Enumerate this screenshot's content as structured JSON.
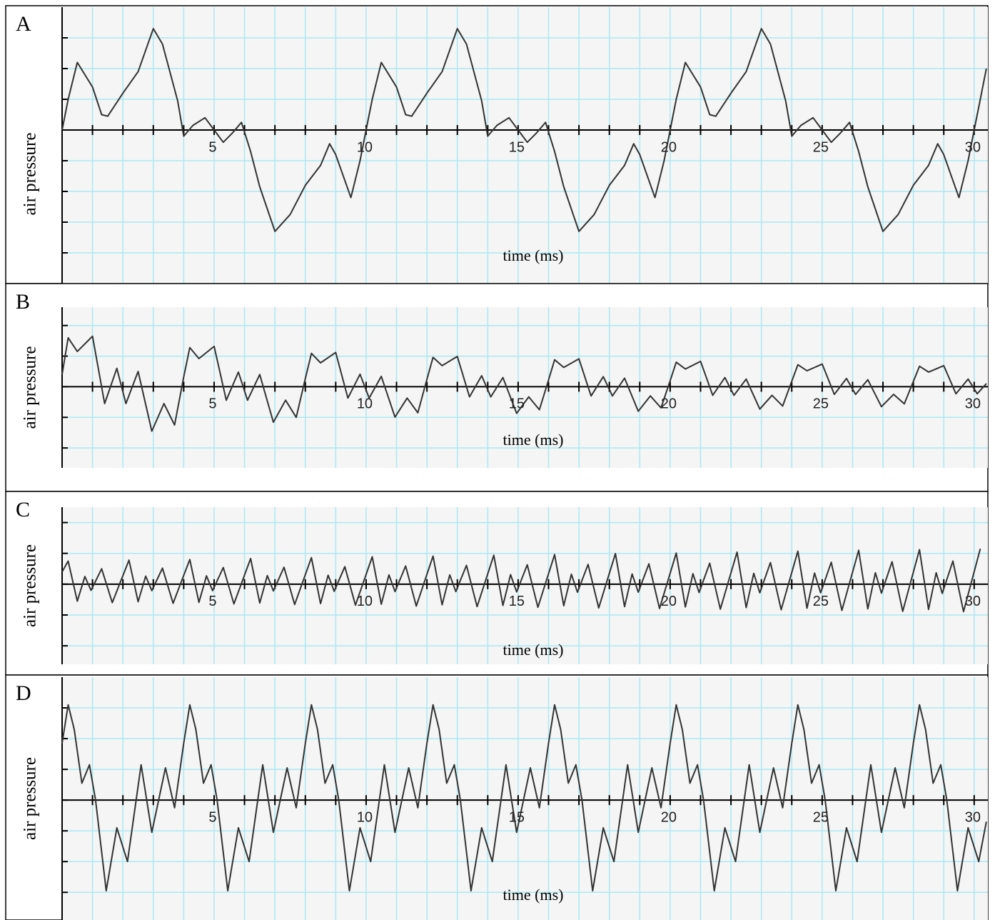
{
  "chart_data": [
    {
      "type": "line",
      "label": "A",
      "ylabel": "air pressure",
      "xlabel": "time (ms)",
      "color": "#333333",
      "grid": true,
      "xlim": [
        0,
        30.45
      ],
      "ylim": [
        -5,
        4
      ],
      "xticks": [
        5,
        10,
        15,
        20,
        25,
        30
      ],
      "minor_xticks": [
        1,
        2,
        3,
        4,
        5,
        6,
        7,
        8,
        9,
        10,
        11,
        12,
        13,
        14,
        15,
        16,
        17,
        18,
        19,
        20,
        21,
        22,
        23,
        24,
        25,
        26,
        27,
        28,
        29,
        30
      ],
      "yticks": [
        -4,
        -3,
        -2,
        -1,
        0,
        1,
        2,
        3
      ],
      "x": [
        0,
        0.2,
        0.5,
        1,
        1.3,
        1.5,
        2,
        2.5,
        3,
        3.3,
        3.8,
        4,
        4.3,
        4.7,
        5,
        5.3,
        5.6,
        5.9,
        6.2,
        6.5,
        7,
        7.5,
        8,
        8.5,
        8.8,
        9,
        9.5,
        9.8,
        10,
        10.2,
        10.5,
        11,
        11.3,
        11.5,
        12,
        12.5,
        13,
        13.3,
        13.8,
        14,
        14.3,
        14.7,
        15,
        15.3,
        15.6,
        15.9,
        16.2,
        16.5,
        17,
        17.5,
        18,
        18.5,
        18.8,
        19,
        19.5,
        19.8,
        20,
        20.2,
        20.5,
        21,
        21.3,
        21.5,
        22,
        22.5,
        23,
        23.3,
        23.8,
        24,
        24.3,
        24.7,
        25,
        25.3,
        25.6,
        25.9,
        26.2,
        26.5,
        27,
        27.5,
        28,
        28.5,
        28.8,
        29,
        29.5,
        29.8,
        30,
        30.2,
        30.4
      ],
      "values": [
        0,
        1,
        2.2,
        1.4,
        0.5,
        0.45,
        1.2,
        1.9,
        3.3,
        2.8,
        0.95,
        -0.2,
        0.15,
        0.4,
        0,
        -0.4,
        -0.1,
        0.25,
        -0.7,
        -1.85,
        -3.3,
        -2.75,
        -1.8,
        -1.15,
        -0.45,
        -0.8,
        -2.2,
        -1,
        0,
        1,
        2.2,
        1.4,
        0.5,
        0.45,
        1.2,
        1.9,
        3.3,
        2.8,
        0.95,
        -0.2,
        0.15,
        0.4,
        0,
        -0.4,
        -0.1,
        0.25,
        -0.7,
        -1.85,
        -3.3,
        -2.75,
        -1.8,
        -1.15,
        -0.45,
        -0.8,
        -2.2,
        -1,
        0,
        1,
        2.2,
        1.4,
        0.5,
        0.45,
        1.2,
        1.9,
        3.3,
        2.8,
        0.95,
        -0.2,
        0.15,
        0.4,
        0,
        -0.4,
        -0.1,
        0.25,
        -0.7,
        -1.85,
        -3.3,
        -2.75,
        -1.8,
        -1.15,
        -0.45,
        -0.8,
        -2.2,
        -1,
        0,
        1,
        2
      ]
    },
    {
      "type": "line",
      "label": "B",
      "ylabel": "air pressure",
      "xlabel": "time (ms)",
      "color": "#333333",
      "grid": true,
      "xlim": [
        0,
        30.45
      ],
      "ylim": [
        -2.65,
        2.6
      ],
      "xticks": [
        5,
        10,
        15,
        20,
        25,
        30
      ],
      "minor_xticks": [
        1,
        2,
        3,
        4,
        5,
        6,
        7,
        8,
        9,
        10,
        11,
        12,
        13,
        14,
        15,
        16,
        17,
        18,
        19,
        20,
        21,
        22,
        23,
        24,
        25,
        26,
        27,
        28,
        29,
        30
      ],
      "yticks": [
        -2,
        -1,
        0,
        1,
        2
      ],
      "x": [
        0,
        0.2,
        0.5,
        1,
        1.4,
        1.8,
        2.1,
        2.5,
        2.95,
        3.35,
        3.7,
        4,
        4.2,
        4.5,
        5,
        5.4,
        5.8,
        6.1,
        6.5,
        6.95,
        7.35,
        7.7,
        8,
        8.2,
        8.5,
        9,
        9.4,
        9.8,
        10.1,
        10.5,
        10.95,
        11.35,
        11.7,
        12,
        12.2,
        12.5,
        13,
        13.4,
        13.8,
        14.1,
        14.5,
        14.95,
        15.35,
        15.7,
        16,
        16.2,
        16.5,
        17,
        17.4,
        17.8,
        18.1,
        18.5,
        18.95,
        19.35,
        19.7,
        20,
        20.2,
        20.5,
        21,
        21.4,
        21.8,
        22.1,
        22.5,
        22.95,
        23.35,
        23.7,
        24,
        24.2,
        24.5,
        25,
        25.4,
        25.8,
        26.1,
        26.5,
        26.95,
        27.35,
        27.7,
        28,
        28.2,
        28.5,
        29,
        29.4,
        29.8,
        30.1,
        30.4
      ],
      "values": [
        0.4,
        1.6,
        1.15,
        1.65,
        -0.55,
        0.6,
        -0.55,
        0.5,
        -1.45,
        -0.55,
        -1.25,
        0.32,
        1.28,
        0.92,
        1.32,
        -0.44,
        0.48,
        -0.44,
        0.4,
        -1.16,
        -0.44,
        -1,
        0.27,
        1.09,
        0.78,
        1.12,
        -0.37,
        0.41,
        -0.37,
        0.34,
        -0.99,
        -0.37,
        -0.85,
        0.24,
        0.96,
        0.69,
        0.99,
        -0.33,
        0.36,
        -0.33,
        0.3,
        -0.87,
        -0.33,
        -0.75,
        0.22,
        0.88,
        0.63,
        0.91,
        -0.3,
        0.33,
        -0.3,
        0.28,
        -0.8,
        -0.3,
        -0.69,
        0.2,
        0.8,
        0.58,
        0.83,
        -0.28,
        0.3,
        -0.28,
        0.25,
        -0.73,
        -0.28,
        -0.63,
        0.18,
        0.72,
        0.52,
        0.74,
        -0.25,
        0.27,
        -0.25,
        0.23,
        -0.65,
        -0.25,
        -0.56,
        0.17,
        0.67,
        0.48,
        0.69,
        -0.23,
        0.25,
        -0.23,
        0.1
      ]
    },
    {
      "type": "line",
      "label": "C",
      "ylabel": "air pressure",
      "xlabel": "time (ms)",
      "color": "#333333",
      "grid": true,
      "xlim": [
        0,
        30.45
      ],
      "ylim": [
        -2.6,
        2.5
      ],
      "xticks": [
        5,
        10,
        15,
        20,
        25,
        30
      ],
      "minor_xticks": [
        1,
        2,
        3,
        4,
        5,
        6,
        7,
        8,
        9,
        10,
        11,
        12,
        13,
        14,
        15,
        16,
        17,
        18,
        19,
        20,
        21,
        22,
        23,
        24,
        25,
        26,
        27,
        28,
        29,
        30
      ],
      "yticks": [
        -2,
        -1,
        0,
        1,
        2
      ],
      "x": [
        0,
        0.2,
        0.5,
        0.75,
        0.95,
        1.3,
        1.65,
        2.2,
        2.5,
        2.75,
        2.95,
        3.3,
        3.65,
        4.2,
        4.5,
        4.75,
        4.95,
        5.3,
        5.65,
        6.2,
        6.5,
        6.75,
        6.95,
        7.3,
        7.65,
        8.2,
        8.5,
        8.75,
        8.95,
        9.3,
        9.65,
        10.2,
        10.5,
        10.75,
        10.95,
        11.3,
        11.65,
        12.2,
        12.5,
        12.75,
        12.95,
        13.3,
        13.65,
        14.2,
        14.5,
        14.75,
        14.95,
        15.3,
        15.65,
        16.2,
        16.5,
        16.75,
        16.95,
        17.3,
        17.65,
        18.2,
        18.5,
        18.75,
        18.95,
        19.3,
        19.65,
        20.2,
        20.5,
        20.75,
        20.95,
        21.3,
        21.65,
        22.2,
        22.5,
        22.75,
        22.95,
        23.3,
        23.65,
        24.2,
        24.5,
        24.75,
        24.95,
        25.3,
        25.65,
        26.2,
        26.5,
        26.75,
        26.95,
        27.3,
        27.65,
        28.2,
        28.5,
        28.75,
        28.95,
        29.3,
        29.65,
        30.2
      ],
      "values": [
        0.4,
        0.75,
        -0.55,
        0.25,
        -0.2,
        0.5,
        -0.6,
        0.78,
        -0.57,
        0.26,
        -0.21,
        0.52,
        -0.62,
        0.8,
        -0.59,
        0.27,
        -0.21,
        0.54,
        -0.64,
        0.83,
        -0.61,
        0.28,
        -0.22,
        0.55,
        -0.66,
        0.86,
        -0.63,
        0.29,
        -0.23,
        0.57,
        -0.68,
        0.89,
        -0.65,
        0.3,
        -0.24,
        0.59,
        -0.71,
        0.91,
        -0.67,
        0.3,
        -0.24,
        0.61,
        -0.73,
        0.94,
        -0.69,
        0.31,
        -0.25,
        0.63,
        -0.75,
        0.96,
        -0.7,
        0.32,
        -0.26,
        0.64,
        -0.77,
        0.99,
        -0.73,
        0.33,
        -0.26,
        0.66,
        -0.79,
        1.01,
        -0.74,
        0.34,
        -0.27,
        0.68,
        -0.81,
        1.04,
        -0.76,
        0.35,
        -0.28,
        0.7,
        -0.83,
        1.07,
        -0.78,
        0.36,
        -0.28,
        0.71,
        -0.85,
        1.1,
        -0.8,
        0.37,
        -0.29,
        0.73,
        -0.88,
        1.12,
        -0.82,
        0.37,
        -0.3,
        0.75,
        -0.89,
        1.15
      ]
    },
    {
      "type": "line",
      "label": "D",
      "ylabel": "air pressure",
      "xlabel": "time (ms)",
      "color": "#333333",
      "grid": true,
      "xlim": [
        0,
        30.45
      ],
      "ylim": [
        -3.9,
        4
      ],
      "xticks": [
        5,
        10,
        15,
        20,
        25,
        30
      ],
      "minor_xticks": [
        1,
        2,
        3,
        4,
        5,
        6,
        7,
        8,
        9,
        10,
        11,
        12,
        13,
        14,
        15,
        16,
        17,
        18,
        19,
        20,
        21,
        22,
        23,
        24,
        25,
        26,
        27,
        28,
        29,
        30
      ],
      "yticks": [
        -3,
        -2,
        -1,
        0,
        1,
        2,
        3
      ],
      "x": [
        0,
        0.2,
        0.4,
        0.65,
        0.9,
        1.1,
        1.45,
        1.8,
        2.15,
        2.6,
        2.95,
        3.4,
        3.7,
        4,
        4.2,
        4.4,
        4.65,
        4.9,
        5.1,
        5.45,
        5.8,
        6.15,
        6.6,
        6.95,
        7.4,
        7.7,
        8,
        8.2,
        8.4,
        8.65,
        8.9,
        9.1,
        9.45,
        9.8,
        10.15,
        10.6,
        10.95,
        11.4,
        11.7,
        12,
        12.2,
        12.4,
        12.65,
        12.9,
        13.1,
        13.45,
        13.8,
        14.15,
        14.6,
        14.95,
        15.4,
        15.7,
        16,
        16.2,
        16.4,
        16.65,
        16.9,
        17.1,
        17.45,
        17.8,
        18.15,
        18.6,
        18.95,
        19.4,
        19.7,
        20,
        20.2,
        20.4,
        20.65,
        20.9,
        21.1,
        21.45,
        21.8,
        22.15,
        22.6,
        22.95,
        23.4,
        23.7,
        24,
        24.2,
        24.4,
        24.65,
        24.9,
        25.1,
        25.45,
        25.8,
        26.15,
        26.6,
        26.95,
        27.4,
        27.7,
        28,
        28.2,
        28.4,
        28.65,
        28.9,
        29.1,
        29.45,
        29.8,
        30.15,
        30.4
      ],
      "values": [
        1.85,
        3.1,
        2.3,
        0.55,
        1.15,
        0,
        -2.95,
        -0.9,
        -2,
        1.15,
        -1.05,
        1.05,
        -0.25,
        1.85,
        3.1,
        2.3,
        0.55,
        1.15,
        0,
        -2.95,
        -0.9,
        -2,
        1.15,
        -1.05,
        1.05,
        -0.25,
        1.85,
        3.1,
        2.3,
        0.55,
        1.15,
        0,
        -2.95,
        -0.9,
        -2,
        1.15,
        -1.05,
        1.05,
        -0.25,
        1.85,
        3.1,
        2.3,
        0.55,
        1.15,
        0,
        -2.95,
        -0.9,
        -2,
        1.15,
        -1.05,
        1.05,
        -0.25,
        1.85,
        3.1,
        2.3,
        0.55,
        1.15,
        0,
        -2.95,
        -0.9,
        -2,
        1.15,
        -1.05,
        1.05,
        -0.25,
        1.85,
        3.1,
        2.3,
        0.55,
        1.15,
        0,
        -2.95,
        -0.9,
        -2,
        1.15,
        -1.05,
        1.05,
        -0.25,
        1.85,
        3.1,
        2.3,
        0.55,
        1.15,
        0,
        -2.95,
        -0.9,
        -2,
        1.15,
        -1.05,
        1.05,
        -0.25,
        1.85,
        3.1,
        2.3,
        0.55,
        1.15,
        0,
        -2.95,
        -0.9,
        -2,
        -0.7
      ]
    }
  ]
}
